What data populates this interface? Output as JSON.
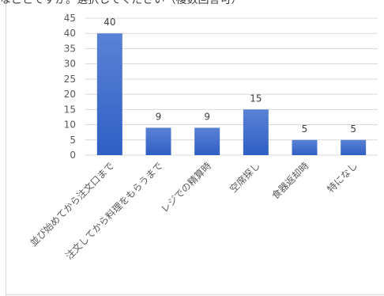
{
  "title": "なことですか。選択してください（複数回答可）",
  "chart_data": {
    "type": "bar",
    "title": "なことですか。選択してください（複数回答可）",
    "categories": [
      "並び始めてから注文口まで",
      "注文してから料理をもらうまで",
      "レジでの精算時",
      "空席探し",
      "食器返却時",
      "特になし"
    ],
    "values": [
      40,
      9,
      9,
      15,
      5,
      5
    ],
    "ylim": [
      0,
      45
    ],
    "yticks": [
      0,
      5,
      10,
      15,
      20,
      25,
      30,
      35,
      40,
      45
    ],
    "grid": true,
    "legend": "none",
    "bar_color_top": "#5a82d6",
    "bar_color_bottom": "#2f5fc4"
  }
}
